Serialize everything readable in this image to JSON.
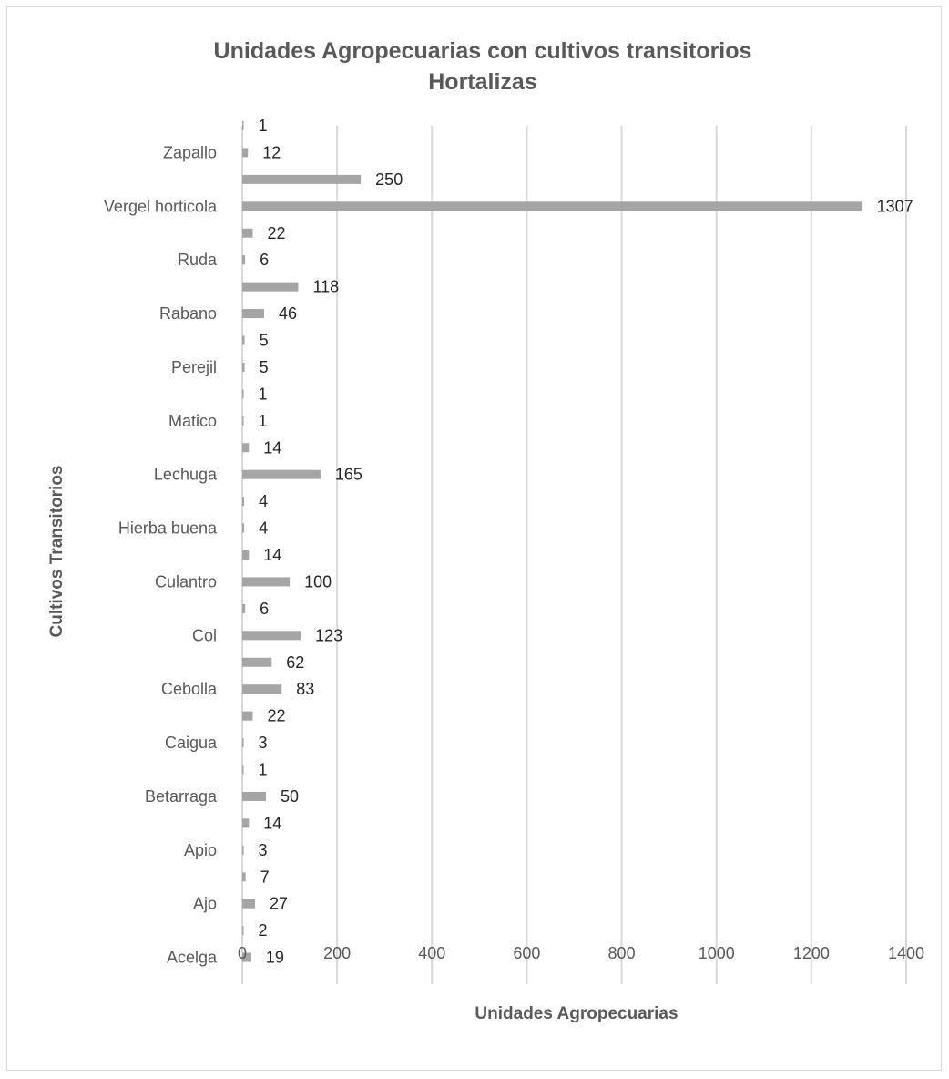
{
  "chart_data": {
    "type": "bar",
    "orientation": "horizontal",
    "title": "Unidades Agropecuarias con cultivos transitorios",
    "subtitle": "Hortalizas",
    "xlabel": "Unidades Agropecuarias",
    "ylabel": "Cultivos Transitorios",
    "xlim": [
      0,
      1400
    ],
    "x_ticks": [
      "0",
      "200",
      "400",
      "600",
      "800",
      "1000",
      "1200",
      "1400"
    ],
    "grid": "vertical",
    "legend": "none",
    "bar_color": "#a5a5a5",
    "categories": [
      "Acelga",
      "Ajo",
      "Apio",
      "Betarraga",
      "Caigua",
      "Cebolla",
      "Col",
      "Culantro",
      "Hierba buena",
      "Lechuga",
      "Matico",
      "Perejil",
      "Rabano",
      "Ruda",
      "Vergel horticola",
      "Zapallo"
    ],
    "series": [
      {
        "values": [
          19,
          27,
          3,
          50,
          3,
          83,
          123,
          100,
          4,
          165,
          1,
          5,
          46,
          6,
          1307,
          12
        ]
      },
      {
        "values": [
          2,
          7,
          14,
          1,
          22,
          62,
          6,
          14,
          4,
          14,
          1,
          5,
          118,
          22,
          250,
          1
        ]
      }
    ]
  }
}
